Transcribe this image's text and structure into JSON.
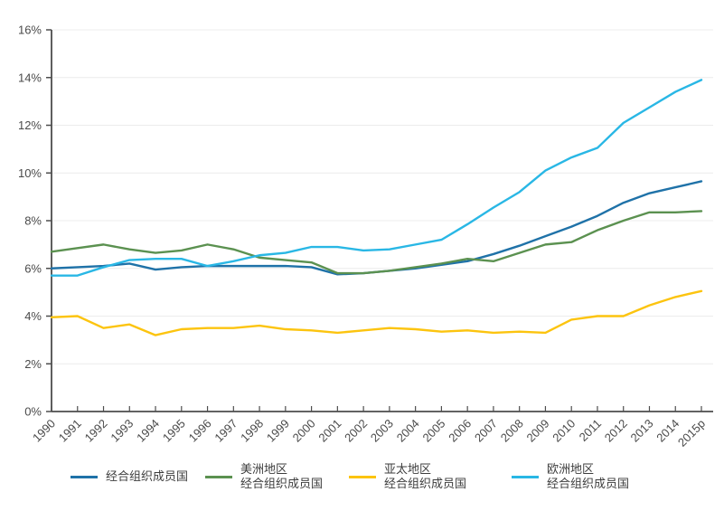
{
  "chart_data": {
    "type": "line",
    "x": [
      "1990",
      "1991",
      "1992",
      "1993",
      "1994",
      "1995",
      "1996",
      "1997",
      "1998",
      "1999",
      "2000",
      "2001",
      "2002",
      "2003",
      "2004",
      "2005",
      "2006",
      "2007",
      "2008",
      "2009",
      "2010",
      "2011",
      "2012",
      "2013",
      "2014",
      "2015p"
    ],
    "series": [
      {
        "name": "经合组织成员国",
        "legend_line1": "经合组织成员国",
        "legend_line2": "",
        "color": "#1f72a8",
        "values": [
          6.0,
          6.05,
          6.1,
          6.2,
          5.95,
          6.05,
          6.1,
          6.1,
          6.1,
          6.1,
          6.05,
          5.75,
          5.8,
          5.9,
          6.0,
          6.15,
          6.3,
          6.6,
          6.95,
          7.35,
          7.75,
          8.2,
          8.75,
          9.15,
          9.4,
          9.65
        ]
      },
      {
        "name": "美洲地区经合组织成员国",
        "legend_line1": "美洲地区",
        "legend_line2": "经合组织成员国",
        "color": "#5b9150",
        "values": [
          6.7,
          6.85,
          7.0,
          6.8,
          6.65,
          6.75,
          7.0,
          6.8,
          6.45,
          6.35,
          6.25,
          5.8,
          5.8,
          5.9,
          6.05,
          6.2,
          6.4,
          6.3,
          6.65,
          7.0,
          7.1,
          7.6,
          8.0,
          8.35,
          8.35,
          8.4
        ]
      },
      {
        "name": "亚太地区经合组织成员国",
        "legend_line1": "亚太地区",
        "legend_line2": "经合组织成员国",
        "color": "#fcc40f",
        "values": [
          3.95,
          4.0,
          3.5,
          3.65,
          3.2,
          3.45,
          3.5,
          3.5,
          3.6,
          3.45,
          3.4,
          3.3,
          3.4,
          3.5,
          3.45,
          3.35,
          3.4,
          3.3,
          3.35,
          3.3,
          3.85,
          4.0,
          4.0,
          4.45,
          4.8,
          5.05
        ]
      },
      {
        "name": "欧洲地区经合组织成员国",
        "legend_line1": "欧洲地区",
        "legend_line2": "经合组织成员国",
        "color": "#29b7e5",
        "values": [
          5.7,
          5.7,
          6.05,
          6.35,
          6.4,
          6.4,
          6.1,
          6.3,
          6.55,
          6.65,
          6.9,
          6.9,
          6.75,
          6.8,
          7.0,
          7.2,
          7.85,
          8.55,
          9.2,
          10.1,
          10.65,
          11.05,
          12.1,
          12.75,
          13.4,
          13.9
        ]
      }
    ],
    "ylim": [
      0,
      16
    ],
    "ytick_labels": [
      "0%",
      "2%",
      "4%",
      "6%",
      "8%",
      "10%",
      "12%",
      "14%",
      "16%"
    ],
    "title": "",
    "xlabel": "",
    "ylabel": "",
    "grid": "horizontal",
    "legend_position": "bottom"
  },
  "colors": {
    "axis": "#4d4d4d",
    "gridline": "#ececec",
    "tick_text": "#4a4a4a",
    "legend_text": "#3d3d3d",
    "background": "#ffffff"
  }
}
